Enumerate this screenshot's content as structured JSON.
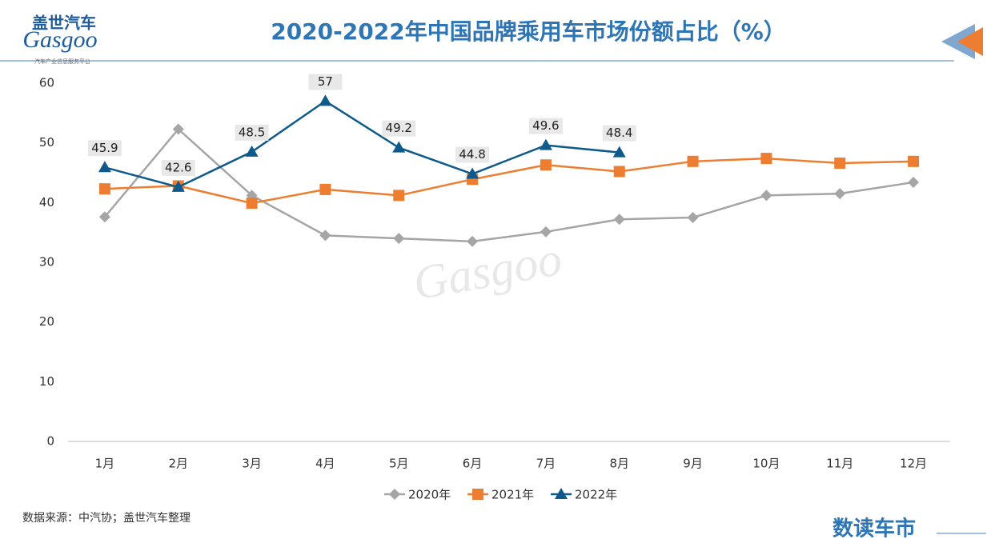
{
  "branding": {
    "logo_cn": "盖世汽车",
    "logo_en": "Gasgoo",
    "logo_tagline": "汽车产业信息服务平台",
    "source": "数据来源：中汽协；盖世汽车整理",
    "footer": "数读车市"
  },
  "chart_data": {
    "type": "line",
    "title": "2020-2022年中国品牌乘用车市场份额占比（%）",
    "categories": [
      "1月",
      "2月",
      "3月",
      "4月",
      "5月",
      "6月",
      "7月",
      "8月",
      "9月",
      "10月",
      "11月",
      "12月"
    ],
    "series": [
      {
        "name": "2020年",
        "color": "#a5a5a5",
        "marker": "diamond",
        "values": [
          37.6,
          52.3,
          41.2,
          34.5,
          34.0,
          33.5,
          35.1,
          37.2,
          37.5,
          41.2,
          41.5,
          43.4
        ]
      },
      {
        "name": "2021年",
        "color": "#ed7d31",
        "marker": "square",
        "values": [
          42.3,
          42.8,
          39.9,
          42.2,
          41.2,
          43.9,
          46.3,
          45.2,
          46.9,
          47.4,
          46.6,
          46.9
        ]
      },
      {
        "name": "2022年",
        "color": "#0e5a8a",
        "marker": "triangle",
        "values": [
          45.9,
          42.6,
          48.5,
          57,
          49.2,
          44.8,
          49.6,
          48.4,
          null,
          null,
          null,
          null
        ],
        "show_labels": true
      }
    ],
    "ylim": [
      0,
      60
    ],
    "yticks": [
      0,
      10,
      20,
      30,
      40,
      50,
      60
    ],
    "grid": false,
    "legend": "bottom"
  }
}
